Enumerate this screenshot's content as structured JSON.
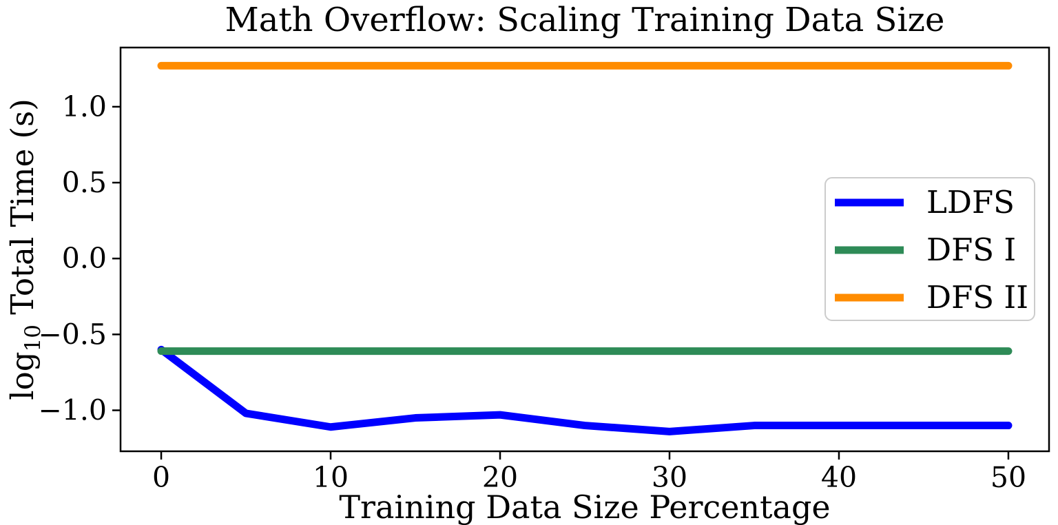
{
  "title": "Math Overflow: Scaling Training Data Size",
  "chart_data": {
    "type": "line",
    "title": "Math Overflow: Scaling Training Data Size",
    "xlabel": "Training Data Size Percentage",
    "ylabel": "log10 Total Time (s)",
    "ylabel_rich": {
      "pre": "log",
      "sub": "10",
      "post": " Total Time (s)"
    },
    "x": [
      0,
      5,
      10,
      15,
      20,
      25,
      30,
      35,
      40,
      45,
      50
    ],
    "series": [
      {
        "name": "LDFS",
        "color": "#0000ff",
        "values": [
          -0.6,
          -1.02,
          -1.11,
          -1.05,
          -1.03,
          -1.1,
          -1.14,
          -1.1,
          -1.1,
          -1.1,
          -1.1
        ]
      },
      {
        "name": "DFS I",
        "color": "#2e8b57",
        "values": [
          -0.61,
          -0.61,
          -0.61,
          -0.61,
          -0.61,
          -0.61,
          -0.61,
          -0.61,
          -0.61,
          -0.61,
          -0.61
        ]
      },
      {
        "name": "DFS II",
        "color": "#ff8c00",
        "values": [
          1.27,
          1.27,
          1.27,
          1.27,
          1.27,
          1.27,
          1.27,
          1.27,
          1.27,
          1.27,
          1.27
        ]
      }
    ],
    "xticks": [
      0,
      10,
      20,
      30,
      40,
      50
    ],
    "xtick_labels": [
      "0",
      "10",
      "20",
      "30",
      "40",
      "50"
    ],
    "yticks": [
      1.0,
      0.5,
      0.0,
      -0.5,
      -1.0
    ],
    "ytick_labels": [
      "1.0",
      "0.5",
      "0.0",
      "−0.5",
      "−1.0"
    ],
    "xlim": [
      -2.4,
      52.4
    ],
    "ylim": [
      -1.27,
      1.39
    ],
    "grid": false,
    "line_width": 11,
    "axis_color": "#000000",
    "legend": {
      "position": "center-right",
      "entries": [
        "LDFS",
        "DFS I",
        "DFS II"
      ],
      "border_color": "#cccccc",
      "background": "#ffffff"
    }
  }
}
